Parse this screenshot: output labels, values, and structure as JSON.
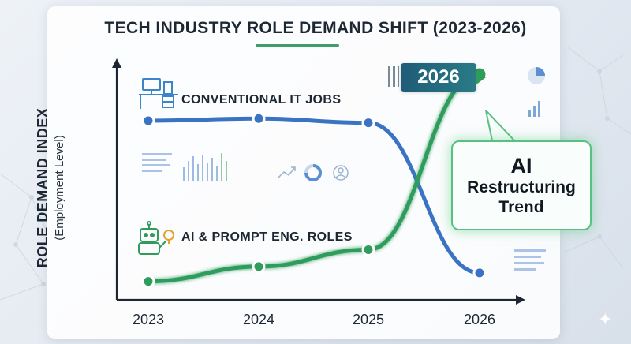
{
  "chart_data": {
    "type": "line",
    "title": "TECH INDUSTRY ROLE DEMAND SHIFT (2023-2026)",
    "ylabel": "ROLE DEMAND INDEX",
    "ylabel_sub": "(Employment Level)",
    "categories": [
      "2023",
      "2024",
      "2025",
      "2026"
    ],
    "ylim": [
      0,
      100
    ],
    "grid": false,
    "series": [
      {
        "name": "CONVENTIONAL IT JOBS",
        "color": "#3b73c4",
        "values": [
          78,
          79,
          77,
          6
        ]
      },
      {
        "name": "AI & PROMPT ENG. ROLES",
        "color": "#2f9c5c",
        "values": [
          2,
          9,
          17,
          100
        ]
      }
    ],
    "annotations": [
      {
        "type": "badge",
        "text": "2026"
      },
      {
        "type": "callout",
        "lines": [
          "AI",
          "Restructuring",
          "Trend"
        ]
      }
    ]
  },
  "icons": [
    "computer-desk-icon",
    "robot-lightbulb-icon",
    "trend-arrow-icon",
    "donut-chart-icon",
    "user-circle-icon",
    "pie-chart-icon",
    "bar-chart-icon",
    "sparkle-icon"
  ]
}
